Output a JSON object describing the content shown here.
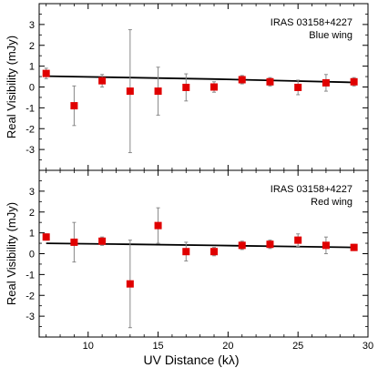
{
  "chart_data": {
    "type": "scatter",
    "xlabel": "UV Distance (kλ)",
    "x_ticks": [
      10,
      15,
      20,
      25,
      30
    ],
    "xlim": [
      6.5,
      30
    ],
    "colors": {
      "points": "#e00000",
      "errorbars": "#888888",
      "model": "#000000"
    },
    "panels": [
      {
        "title": "IRAS 03158+4227",
        "subtitle": "Blue wing",
        "ylabel": "Real Visibility (mJy)",
        "ylim": [
          -4,
          4
        ],
        "y_ticks": [
          -3,
          -2,
          -1,
          0,
          1,
          2,
          3
        ],
        "points": [
          {
            "x": 7,
            "y": 0.65,
            "err": 0.25
          },
          {
            "x": 9,
            "y": -0.9,
            "err": 0.95
          },
          {
            "x": 11,
            "y": 0.3,
            "err": 0.3
          },
          {
            "x": 13,
            "y": -0.2,
            "err": 2.95
          },
          {
            "x": 15,
            "y": -0.2,
            "err": 1.15
          },
          {
            "x": 17,
            "y": -0.02,
            "err": 0.65
          },
          {
            "x": 19,
            "y": 0.0,
            "err": 0.25
          },
          {
            "x": 21,
            "y": 0.35,
            "err": 0.2
          },
          {
            "x": 23,
            "y": 0.25,
            "err": 0.2
          },
          {
            "x": 25,
            "y": -0.02,
            "err": 0.35
          },
          {
            "x": 27,
            "y": 0.2,
            "err": 0.4
          },
          {
            "x": 29,
            "y": 0.25,
            "err": 0.2
          }
        ],
        "model": [
          [
            7,
            0.52
          ],
          [
            13,
            0.45
          ],
          [
            19,
            0.38
          ],
          [
            24,
            0.3
          ],
          [
            29,
            0.22
          ]
        ]
      },
      {
        "title": "IRAS 03158+4227",
        "subtitle": "Red wing",
        "ylabel": "Real Visibility (mJy)",
        "ylim": [
          -4,
          4
        ],
        "y_ticks": [
          -3,
          -2,
          -1,
          0,
          1,
          2,
          3
        ],
        "points": [
          {
            "x": 7,
            "y": 0.8,
            "err": 0.15
          },
          {
            "x": 9,
            "y": 0.55,
            "err": 0.95
          },
          {
            "x": 11,
            "y": 0.6,
            "err": 0.2
          },
          {
            "x": 13,
            "y": -1.45,
            "err": 2.1
          },
          {
            "x": 15,
            "y": 1.35,
            "err": 0.85
          },
          {
            "x": 17,
            "y": 0.1,
            "err": 0.45
          },
          {
            "x": 19,
            "y": 0.1,
            "err": 0.2
          },
          {
            "x": 21,
            "y": 0.4,
            "err": 0.2
          },
          {
            "x": 23,
            "y": 0.45,
            "err": 0.2
          },
          {
            "x": 25,
            "y": 0.65,
            "err": 0.3
          },
          {
            "x": 27,
            "y": 0.4,
            "err": 0.4
          },
          {
            "x": 29,
            "y": 0.3,
            "err": 0.15
          }
        ],
        "model": [
          [
            7,
            0.5
          ],
          [
            13,
            0.45
          ],
          [
            19,
            0.4
          ],
          [
            24,
            0.35
          ],
          [
            29,
            0.3
          ]
        ]
      }
    ]
  }
}
